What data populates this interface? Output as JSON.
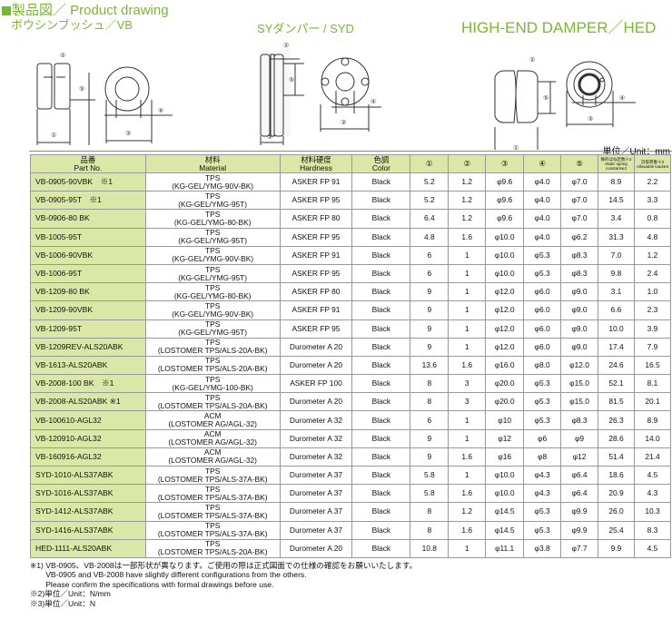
{
  "title": "製品図／ Product drawing",
  "drawings": {
    "vb": "ボウシンブッシュ／VB",
    "syd": "SYダンパー / SYD",
    "hed": "HIGH-END DAMPER／HED"
  },
  "dim_labels": [
    "①",
    "②",
    "③",
    "④",
    "⑤"
  ],
  "unit": "単位／Unit：mm",
  "headers": [
    "品番",
    "Part No.",
    "材料",
    "Material",
    "材料硬度",
    "Hardness",
    "色調",
    "Color",
    "①",
    "②",
    "③",
    "④",
    "⑤",
    "静的ばね定数※2",
    "Static spring constant※2",
    "許容荷重※3",
    "Allowable load※3"
  ],
  "rows": [
    [
      "VB-0905-90VBK　※1",
      "TPS",
      "(KG-GEL/YMG-90V-BK)",
      "ASKER FP 91",
      "Black",
      "5.2",
      "1.2",
      "φ9.6",
      "φ4.0",
      "φ7.0",
      "8.9",
      "2.2"
    ],
    [
      "VB-0905-95T　※1",
      "TPS",
      "(KG-GEL/YMG-95T)",
      "ASKER FP 95",
      "Black",
      "5.2",
      "1.2",
      "φ9.6",
      "φ4.0",
      "φ7.0",
      "14.5",
      "3.3"
    ],
    [
      "VB-0906-80 BK",
      "TPS",
      "(KG-GEL/YMG-80-BK)",
      "ASKER FP 80",
      "Black",
      "6.4",
      "1.2",
      "φ9.6",
      "φ4.0",
      "φ7.0",
      "3.4",
      "0.8"
    ],
    [
      "VB-1005-95T",
      "TPS",
      "(KG-GEL/YMG-95T)",
      "ASKER FP 95",
      "Black",
      "4.8",
      "1.6",
      "φ10.0",
      "φ4.0",
      "φ6.2",
      "31.3",
      "4.8"
    ],
    [
      "VB-1006-90VBK",
      "TPS",
      "(KG-GEL/YMG-90V-BK)",
      "ASKER FP 91",
      "Black",
      "6",
      "1",
      "φ10.0",
      "φ5.3",
      "φ8.3",
      "7.0",
      "1.2"
    ],
    [
      "VB-1006-95T",
      "TPS",
      "(KG-GEL/YMG-95T)",
      "ASKER FP 95",
      "Black",
      "6",
      "1",
      "φ10.0",
      "φ5.3",
      "φ8.3",
      "9.8",
      "2.4"
    ],
    [
      "VB-1209-80 BK",
      "TPS",
      "(KG-GEL/YMG-80-BK)",
      "ASKER FP 80",
      "Black",
      "9",
      "1",
      "φ12.0",
      "φ6.0",
      "φ9.0",
      "3.1",
      "1.0"
    ],
    [
      "VB-1209-90VBK",
      "TPS",
      "(KG-GEL/YMG-90V-BK)",
      "ASKER FP 91",
      "Black",
      "9",
      "1",
      "φ12.0",
      "φ6.0",
      "φ9.0",
      "6.6",
      "2.3"
    ],
    [
      "VB-1209-95T",
      "TPS",
      "(KG-GEL/YMG-95T)",
      "ASKER FP 95",
      "Black",
      "9",
      "1",
      "φ12.0",
      "φ6.0",
      "φ9.0",
      "10.0",
      "3.9"
    ],
    [
      "VB-1209REV-ALS20ABK",
      "TPS",
      "(LOSTOMER TPS/ALS-20A-BK)",
      "Durometer A 20",
      "Black",
      "9",
      "1",
      "φ12.0",
      "φ6.0",
      "φ9.0",
      "17.4",
      "7.9"
    ],
    [
      "VB-1613-ALS20ABK",
      "TPS",
      "(LOSTOMER TPS/ALS-20A-BK)",
      "Durometer A 20",
      "Black",
      "13.6",
      "1.6",
      "φ16.0",
      "φ8.0",
      "φ12.0",
      "24.6",
      "16.5"
    ],
    [
      "VB-2008-100 BK　※1",
      "TPS",
      "(KG-GEL/YMG-100-BK)",
      "ASKER FP 100",
      "Black",
      "8",
      "3",
      "φ20.0",
      "φ5.3",
      "φ15.0",
      "52.1",
      "8.1"
    ],
    [
      "VB-2008-ALS20ABK ※1",
      "TPS",
      "(LOSTOMER TPS/ALS-20A-BK)",
      "Durometer A 20",
      "Black",
      "8",
      "3",
      "φ20.0",
      "φ5.3",
      "φ15.0",
      "81.5",
      "20.1"
    ],
    [
      "VB-100610-AGL32",
      "ACM",
      "(LOSTOMER AG/AGL-32)",
      "Durometer A 32",
      "Black",
      "6",
      "1",
      "φ10",
      "φ5.3",
      "φ8.3",
      "26.3",
      "8.9"
    ],
    [
      "VB-120910-AGL32",
      "ACM",
      "(LOSTOMER AG/AGL-32)",
      "Durometer A 32",
      "Black",
      "9",
      "1",
      "φ12",
      "φ6",
      "φ9",
      "28.6",
      "14.0"
    ],
    [
      "VB-160916-AGL32",
      "ACM",
      "(LOSTOMER AG/AGL-32)",
      "Durometer A 32",
      "Black",
      "9",
      "1.6",
      "φ16",
      "φ8",
      "φ12",
      "51.4",
      "21.4"
    ],
    [
      "SYD-1010-ALS37ABK",
      "TPS",
      "(LOSTOMER TPS/ALS-37A-BK)",
      "Durometer A 37",
      "Black",
      "5.8",
      "1",
      "φ10.0",
      "φ4.3",
      "φ6.4",
      "18.6",
      "4.5"
    ],
    [
      "SYD-1016-ALS37ABK",
      "TPS",
      "(LOSTOMER TPS/ALS-37A-BK)",
      "Durometer A 37",
      "Black",
      "5.8",
      "1.6",
      "φ10.0",
      "φ4.3",
      "φ6.4",
      "20.9",
      "4.3"
    ],
    [
      "SYD-1412-ALS37ABK",
      "TPS",
      "(LOSTOMER TPS/ALS-37A-BK)",
      "Durometer A 37",
      "Black",
      "8",
      "1.2",
      "φ14.5",
      "φ5.3",
      "φ9.9",
      "26.0",
      "10.3"
    ],
    [
      "SYD-1416-ALS37ABK",
      "TPS",
      "(LOSTOMER TPS/ALS-37A-BK)",
      "Durometer A 37",
      "Black",
      "8",
      "1.6",
      "φ14.5",
      "φ5.3",
      "φ9.9",
      "25.4",
      "8.3"
    ],
    [
      "HED-1111-ALS20ABK",
      "TPS",
      "(LOSTOMER TPS/ALS-20A-BK)",
      "Durometer A 20",
      "Black",
      "10.8",
      "1",
      "φ11.1",
      "φ3.8",
      "φ7.7",
      "9.9",
      "4.5"
    ]
  ],
  "notes": [
    "※1) VB-0905、VB-2008は一部形状が異なります。ご使用の際は正式図面での仕様の確認をお願いいたします。",
    "　　VB-0905 and VB-2008 have slightly different configurations from the others.",
    "　　Please confirm the specifications with formal drawings before use.",
    "※2)単位／Unit：N/mm",
    "※3)単位／Unit：N"
  ],
  "colors": {
    "accent": "#7ab636",
    "header_bg": "#d9e8a6"
  }
}
